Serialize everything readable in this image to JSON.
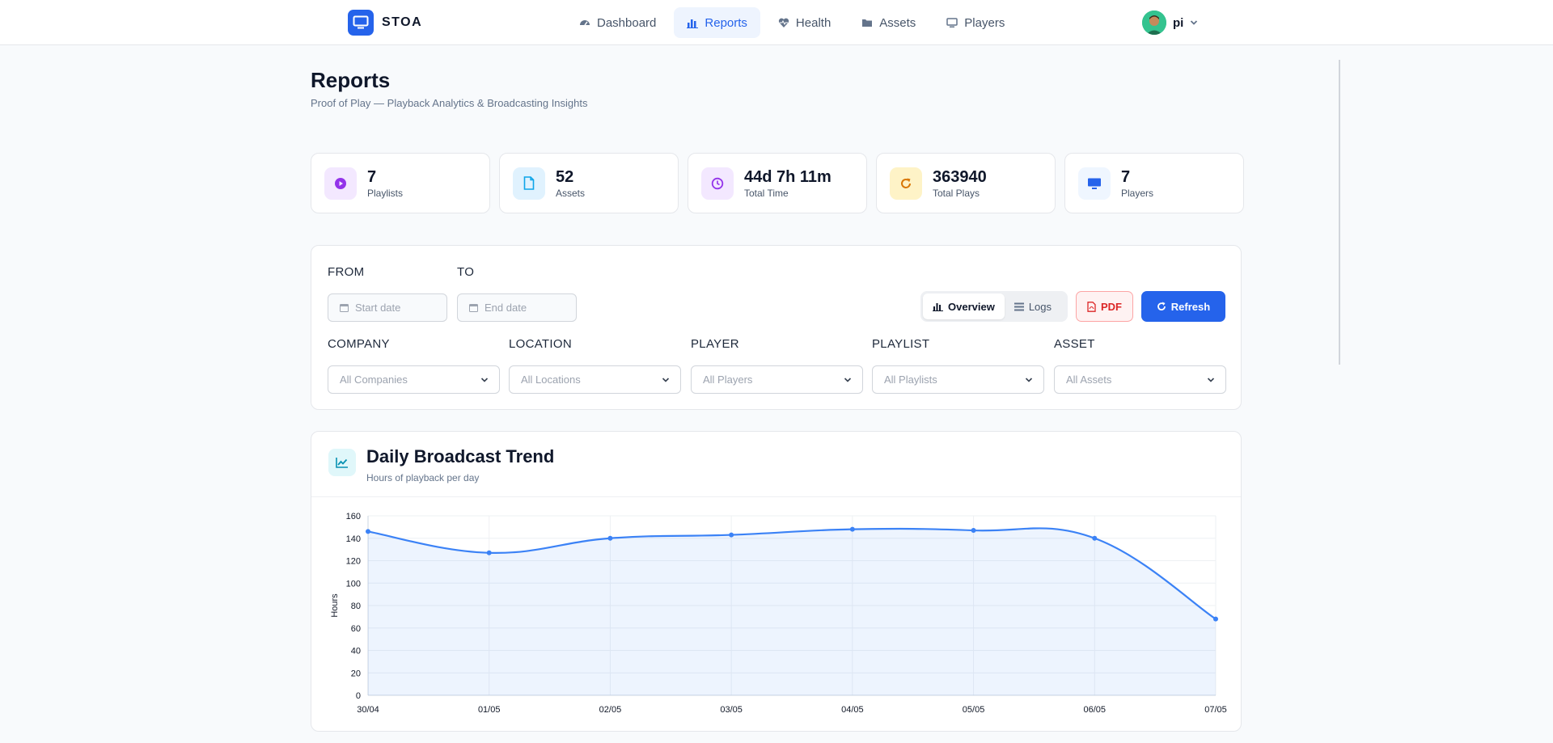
{
  "brand": {
    "name": "STOA"
  },
  "nav": [
    {
      "label": "Dashboard",
      "icon": "gauge-icon",
      "active": false
    },
    {
      "label": "Reports",
      "icon": "bar-chart-icon",
      "active": true
    },
    {
      "label": "Health",
      "icon": "heartbeat-icon",
      "active": false
    },
    {
      "label": "Assets",
      "icon": "folder-icon",
      "active": false
    },
    {
      "label": "Players",
      "icon": "monitor-icon",
      "active": false
    }
  ],
  "user": {
    "name": "pi"
  },
  "page": {
    "title": "Reports",
    "subtitle": "Proof of Play — Playback Analytics & Broadcasting Insights"
  },
  "stats": [
    {
      "value": "7",
      "label": "Playlists",
      "icon": "play-circle-icon",
      "color": "#9333ea",
      "bg": "#f3e8ff"
    },
    {
      "value": "52",
      "label": "Assets",
      "icon": "file-icon",
      "color": "#0ea5e9",
      "bg": "#e0f2fe"
    },
    {
      "value": "44d 7h 11m",
      "label": "Total Time",
      "icon": "clock-icon",
      "color": "#9333ea",
      "bg": "#f3e8ff"
    },
    {
      "value": "363940",
      "label": "Total Plays",
      "icon": "redo-icon",
      "color": "#d97706",
      "bg": "#fef3c7"
    },
    {
      "value": "7",
      "label": "Players",
      "icon": "monitor-icon",
      "color": "#2563eb",
      "bg": "#eff6ff"
    }
  ],
  "filters": {
    "from_label": "FROM",
    "to_label": "TO",
    "start_placeholder": "Start date",
    "end_placeholder": "End date",
    "view_overview": "Overview",
    "view_logs": "Logs",
    "pdf_label": "PDF",
    "refresh_label": "Refresh",
    "selects": [
      {
        "label": "COMPANY",
        "value": "All Companies"
      },
      {
        "label": "LOCATION",
        "value": "All Locations"
      },
      {
        "label": "PLAYER",
        "value": "All Players"
      },
      {
        "label": "PLAYLIST",
        "value": "All Playlists"
      },
      {
        "label": "ASSET",
        "value": "All Assets"
      }
    ]
  },
  "chart_card": {
    "title": "Daily Broadcast Trend",
    "subtitle": "Hours of playback per day"
  },
  "chart_data": {
    "type": "line",
    "x": [
      "30/04",
      "01/05",
      "02/05",
      "03/05",
      "04/05",
      "05/05",
      "06/05",
      "07/05"
    ],
    "values": [
      146,
      127,
      140,
      143,
      148,
      147,
      140,
      68
    ],
    "ylabel": "Hours",
    "ylim": [
      0,
      160
    ],
    "yticks": [
      0,
      20,
      40,
      60,
      80,
      100,
      120,
      140,
      160
    ],
    "grid": true,
    "fill": true,
    "color": "#3b82f6"
  }
}
